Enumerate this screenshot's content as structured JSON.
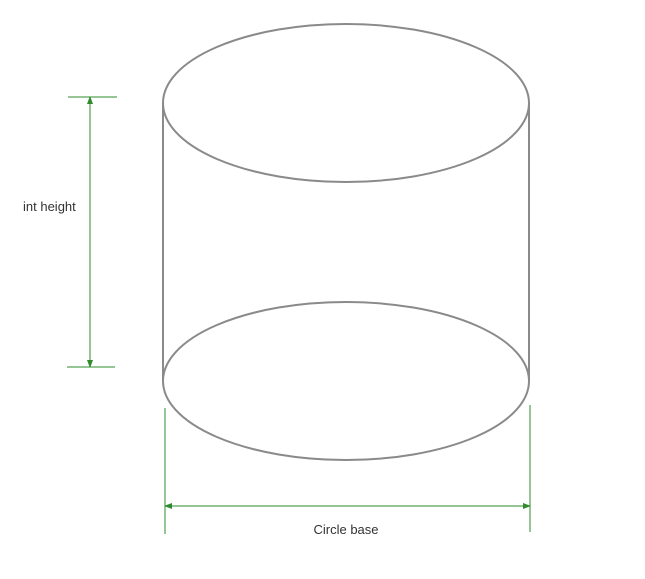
{
  "labels": {
    "height": "int height",
    "base": "Circle base"
  },
  "colors": {
    "shape_stroke": "#8a8a8a",
    "dimension_stroke": "#2e8b2e",
    "text": "#333333",
    "background": "#ffffff"
  }
}
